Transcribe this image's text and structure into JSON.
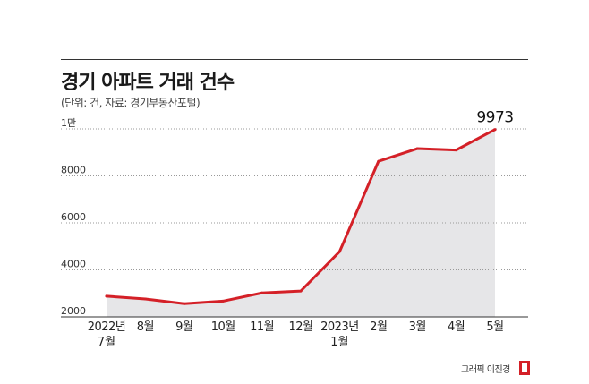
{
  "header": {
    "title": "경기 아파트 거래 건수",
    "subtitle": "(단위: 건, 자료: 경기부동산포털)"
  },
  "credit": "그래픽 이진경",
  "colors": {
    "line": "#d42027",
    "area": "#e6e6e8",
    "grid": "#999999",
    "axis": "#333333",
    "logo": "#d42027"
  },
  "chart_data": {
    "type": "area",
    "title": "경기 아파트 거래 건수",
    "subtitle": "(단위: 건, 자료: 경기부동산포털)",
    "categories": [
      {
        "line1": "2022년",
        "line2": "7월"
      },
      {
        "line1": "8월",
        "line2": ""
      },
      {
        "line1": "9월",
        "line2": ""
      },
      {
        "line1": "10월",
        "line2": ""
      },
      {
        "line1": "11월",
        "line2": ""
      },
      {
        "line1": "12월",
        "line2": ""
      },
      {
        "line1": "2023년",
        "line2": "1월"
      },
      {
        "line1": "2월",
        "line2": ""
      },
      {
        "line1": "3월",
        "line2": ""
      },
      {
        "line1": "4월",
        "line2": ""
      },
      {
        "line1": "5월",
        "line2": ""
      }
    ],
    "values": [
      2880,
      2760,
      2560,
      2670,
      3020,
      3100,
      4780,
      8620,
      9160,
      9100,
      9973
    ],
    "ylim": [
      2000,
      10000
    ],
    "yticks": [
      {
        "value": 2000,
        "label": "2000"
      },
      {
        "value": 4000,
        "label": "4000"
      },
      {
        "value": 6000,
        "label": "6000"
      },
      {
        "value": 8000,
        "label": "8000"
      },
      {
        "value": 10000,
        "label": "1만"
      }
    ],
    "annotation": {
      "index": 10,
      "label": "9973"
    },
    "grid": true
  }
}
